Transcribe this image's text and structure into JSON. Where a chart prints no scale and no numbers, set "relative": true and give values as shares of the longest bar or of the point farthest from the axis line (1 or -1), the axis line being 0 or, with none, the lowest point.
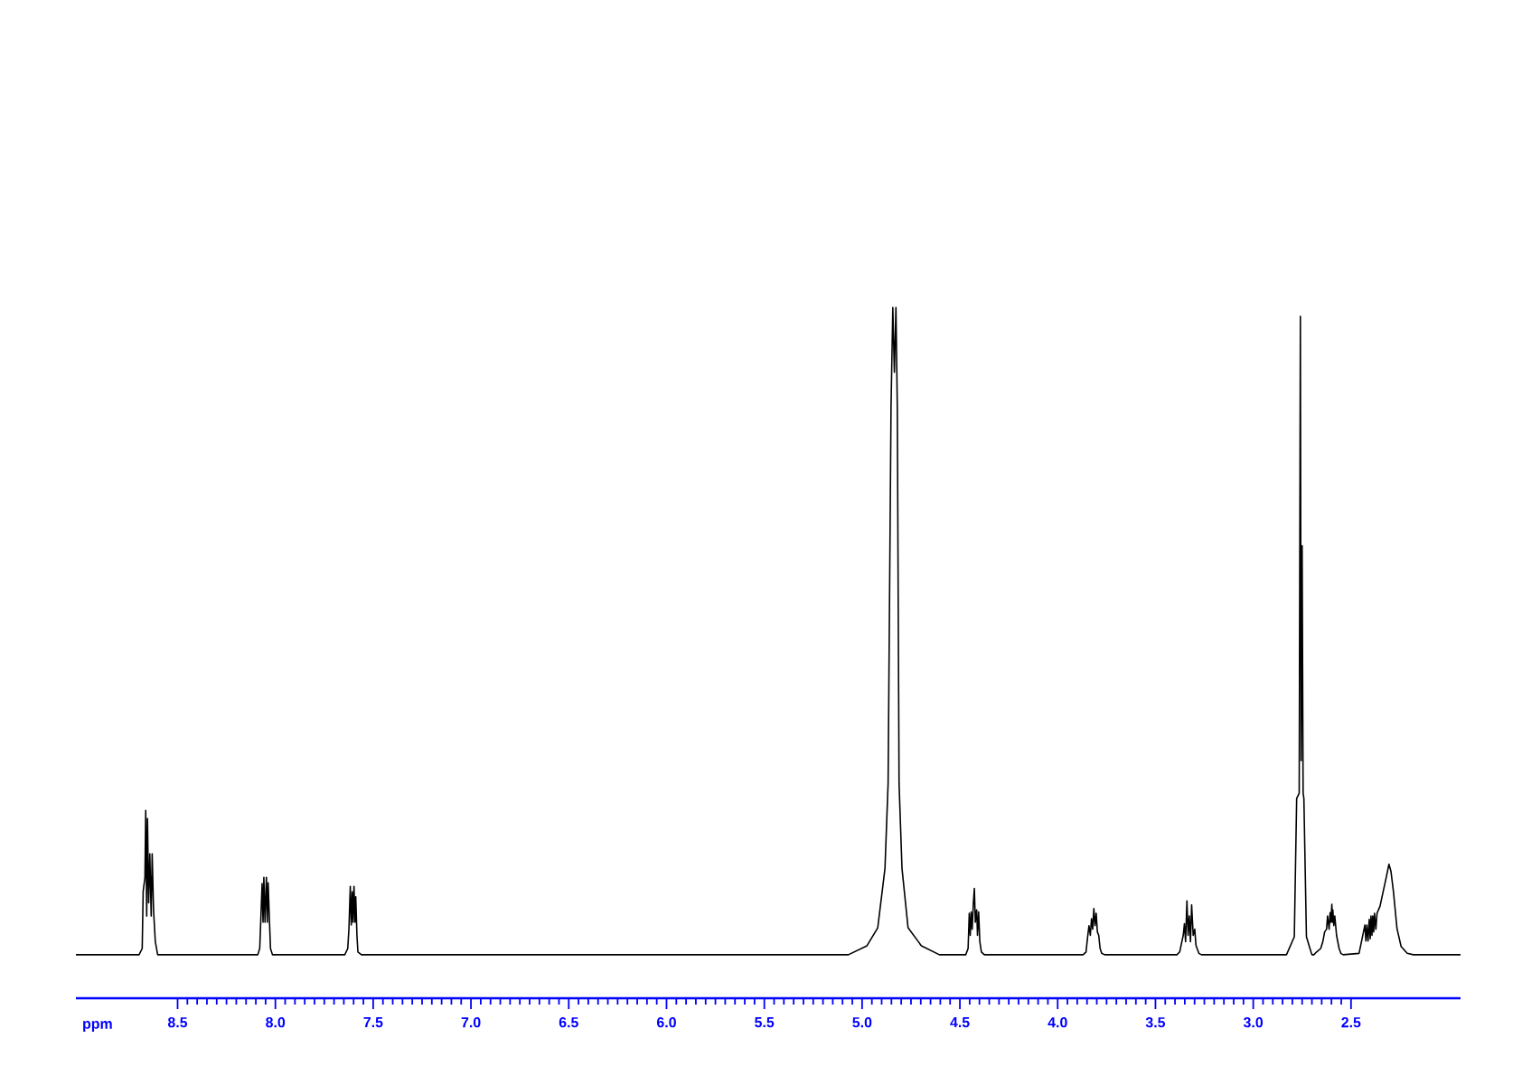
{
  "chart_data": {
    "type": "line",
    "relative": true,
    "color": "#000000",
    "xlabel": "ppm",
    "tick_labels": "x",
    "xlim": [
      9.02,
      1.94
    ],
    "xticks": [
      8.5,
      {
        "value": 8,
        "label": "8.0"
      },
      7.5,
      {
        "value": 7,
        "label": "7.0"
      },
      6.5,
      {
        "value": 6,
        "label": "6.0"
      },
      5.5,
      {
        "value": 5,
        "label": "5.0"
      },
      4.5,
      {
        "value": 4,
        "label": "4.0"
      },
      3.5,
      {
        "value": 3,
        "label": "3.0"
      },
      2.5
    ],
    "x": [
      9.02,
      8.72,
      8.697,
      8.681,
      8.676,
      8.667,
      8.663,
      8.658,
      8.654,
      8.648,
      8.642,
      8.635,
      8.63,
      8.623,
      8.614,
      8.602,
      8.09,
      8.08,
      8.075,
      8.068,
      8.063,
      8.059,
      8.053,
      8.046,
      8.041,
      8.037,
      8.03,
      8.025,
      8.015,
      7.645,
      7.63,
      7.624,
      7.617,
      7.612,
      7.607,
      7.603,
      7.598,
      7.593,
      7.589,
      7.583,
      7.578,
      7.56,
      5.07,
      4.975,
      4.92,
      4.883,
      4.867,
      4.852,
      4.843,
      4.835,
      4.827,
      4.82,
      4.811,
      4.796,
      4.765,
      4.697,
      4.605,
      4.47,
      4.458,
      4.452,
      4.447,
      4.442,
      4.437,
      4.431,
      4.426,
      4.421,
      4.414,
      4.41,
      4.404,
      4.398,
      4.39,
      4.375,
      3.87,
      3.855,
      3.848,
      3.84,
      3.833,
      3.827,
      3.821,
      3.815,
      3.809,
      3.803,
      3.797,
      3.79,
      3.783,
      3.775,
      3.76,
      3.39,
      3.376,
      3.365,
      3.358,
      3.352,
      3.346,
      3.339,
      3.333,
      3.327,
      3.321,
      3.315,
      3.307,
      3.299,
      3.293,
      3.287,
      3.278,
      3.265,
      2.83,
      2.79,
      2.778,
      2.765,
      2.759,
      2.755,
      2.75,
      2.745,
      2.741,
      2.728,
      2.71,
      2.7,
      2.69,
      2.676,
      2.655,
      2.644,
      2.635,
      2.625,
      2.62,
      2.612,
      2.607,
      2.603,
      2.598,
      2.595,
      2.593,
      2.588,
      2.583,
      2.574,
      2.561,
      2.552,
      2.54,
      2.459,
      2.429,
      2.424,
      2.419,
      2.413,
      2.407,
      2.402,
      2.398,
      2.393,
      2.389,
      2.384,
      2.38,
      2.373,
      2.367,
      2.352,
      2.336,
      2.32,
      2.306,
      2.296,
      2.283,
      2.265,
      2.244,
      2.213,
      2.182,
      1.94
    ],
    "values": [
      0.063,
      0.063,
      0.063,
      0.072,
      0.155,
      0.175,
      0.272,
      0.119,
      0.26,
      0.138,
      0.209,
      0.119,
      0.209,
      0.128,
      0.082,
      0.063,
      0.063,
      0.072,
      0.11,
      0.166,
      0.11,
      0.175,
      0.11,
      0.175,
      0.11,
      0.167,
      0.11,
      0.072,
      0.063,
      0.063,
      0.072,
      0.1,
      0.162,
      0.106,
      0.154,
      0.11,
      0.162,
      0.11,
      0.147,
      0.091,
      0.067,
      0.063,
      0.063,
      0.076,
      0.102,
      0.188,
      0.311,
      0.856,
      1.0,
      0.906,
      1.0,
      0.856,
      0.311,
      0.188,
      0.102,
      0.076,
      0.063,
      0.063,
      0.072,
      0.123,
      0.091,
      0.125,
      0.1,
      0.138,
      0.159,
      0.11,
      0.128,
      0.091,
      0.125,
      0.082,
      0.067,
      0.063,
      0.063,
      0.067,
      0.086,
      0.105,
      0.091,
      0.115,
      0.1,
      0.13,
      0.105,
      0.123,
      0.096,
      0.091,
      0.072,
      0.065,
      0.063,
      0.063,
      0.067,
      0.082,
      0.091,
      0.108,
      0.082,
      0.141,
      0.091,
      0.119,
      0.082,
      0.135,
      0.091,
      0.1,
      0.077,
      0.072,
      0.065,
      0.063,
      0.063,
      0.089,
      0.289,
      0.297,
      0.987,
      0.344,
      0.655,
      0.297,
      0.289,
      0.089,
      0.072,
      0.063,
      0.063,
      0.067,
      0.072,
      0.082,
      0.096,
      0.1,
      0.119,
      0.1,
      0.124,
      0.11,
      0.136,
      0.11,
      0.128,
      0.105,
      0.119,
      0.091,
      0.072,
      0.065,
      0.063,
      0.065,
      0.106,
      0.083,
      0.106,
      0.083,
      0.114,
      0.086,
      0.119,
      0.091,
      0.119,
      0.096,
      0.123,
      0.1,
      0.123,
      0.133,
      0.154,
      0.175,
      0.194,
      0.184,
      0.154,
      0.101,
      0.075,
      0.065,
      0.063,
      0.063
    ]
  }
}
